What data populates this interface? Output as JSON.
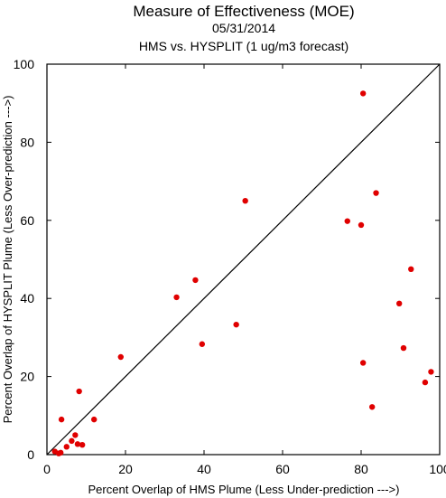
{
  "chart_data": {
    "type": "scatter",
    "title": "Measure of Effectiveness (MOE)",
    "subtitle": "05/31/2014",
    "subtitle2": "HMS vs. HYSPLIT  (1 ug/m3 forecast)",
    "xlabel": "Percent Overlap of HMS Plume (Less Under-prediction --->)",
    "ylabel": "Percent Overlap of HYSPLIT Plume (Less Over-prediction --->)",
    "xlim": [
      0,
      100
    ],
    "ylim": [
      0,
      100
    ],
    "xticks": [
      0,
      20,
      40,
      60,
      80,
      100
    ],
    "yticks": [
      0,
      20,
      40,
      60,
      80,
      100
    ],
    "grid": false,
    "point_color": "#e00000",
    "reference_line": {
      "from": [
        0,
        0
      ],
      "to": [
        100,
        100
      ],
      "color": "#000000"
    },
    "points": [
      {
        "x": 2.0,
        "y": 0.8
      },
      {
        "x": 3.0,
        "y": 0.3
      },
      {
        "x": 3.5,
        "y": 0.5
      },
      {
        "x": 3.7,
        "y": 9.0
      },
      {
        "x": 5.0,
        "y": 2.0
      },
      {
        "x": 6.3,
        "y": 3.5
      },
      {
        "x": 7.2,
        "y": 5.0
      },
      {
        "x": 7.8,
        "y": 2.7
      },
      {
        "x": 8.2,
        "y": 16.2
      },
      {
        "x": 9.0,
        "y": 2.5
      },
      {
        "x": 12.0,
        "y": 9.0
      },
      {
        "x": 18.8,
        "y": 25.0
      },
      {
        "x": 33.0,
        "y": 40.3
      },
      {
        "x": 37.8,
        "y": 44.7
      },
      {
        "x": 39.5,
        "y": 28.3
      },
      {
        "x": 48.2,
        "y": 33.3
      },
      {
        "x": 50.5,
        "y": 65.0
      },
      {
        "x": 76.5,
        "y": 59.8
      },
      {
        "x": 80.0,
        "y": 58.8
      },
      {
        "x": 80.5,
        "y": 92.5
      },
      {
        "x": 80.5,
        "y": 23.5
      },
      {
        "x": 82.8,
        "y": 12.2
      },
      {
        "x": 83.8,
        "y": 67.0
      },
      {
        "x": 89.7,
        "y": 38.7
      },
      {
        "x": 90.8,
        "y": 27.3
      },
      {
        "x": 92.7,
        "y": 47.5
      },
      {
        "x": 96.3,
        "y": 18.5
      },
      {
        "x": 97.8,
        "y": 21.2
      }
    ]
  }
}
